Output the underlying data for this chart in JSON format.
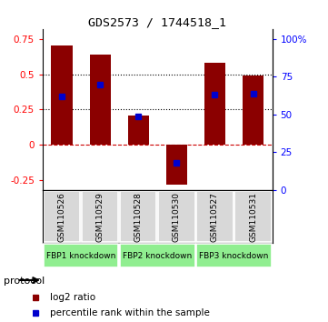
{
  "title": "GDS2573 / 1744518_1",
  "samples": [
    "GSM110526",
    "GSM110529",
    "GSM110528",
    "GSM110530",
    "GSM110527",
    "GSM110531"
  ],
  "log2_ratio": [
    0.7,
    0.64,
    0.21,
    -0.28,
    0.58,
    0.49
  ],
  "percentile_rank": [
    62,
    70,
    49,
    18,
    63,
    64
  ],
  "bar_color": "#8B0000",
  "dot_color": "#0000CD",
  "ylim_left": [
    -0.32,
    0.82
  ],
  "ylim_right": [
    0,
    106.67
  ],
  "yticks_left": [
    -0.25,
    0,
    0.25,
    0.5,
    0.75
  ],
  "yticks_right": [
    0,
    25,
    50,
    75,
    100
  ],
  "ytick_labels_right": [
    "0",
    "25",
    "50",
    "75",
    "100%"
  ],
  "hlines": [
    0.5,
    0.25
  ],
  "bg_color": "#D8D8D8",
  "proto_color": "#90EE90",
  "proto_groups": [
    [
      0,
      1,
      "FBP1 knockdown"
    ],
    [
      2,
      3,
      "FBP2 knockdown"
    ],
    [
      4,
      5,
      "FBP3 knockdown"
    ]
  ]
}
